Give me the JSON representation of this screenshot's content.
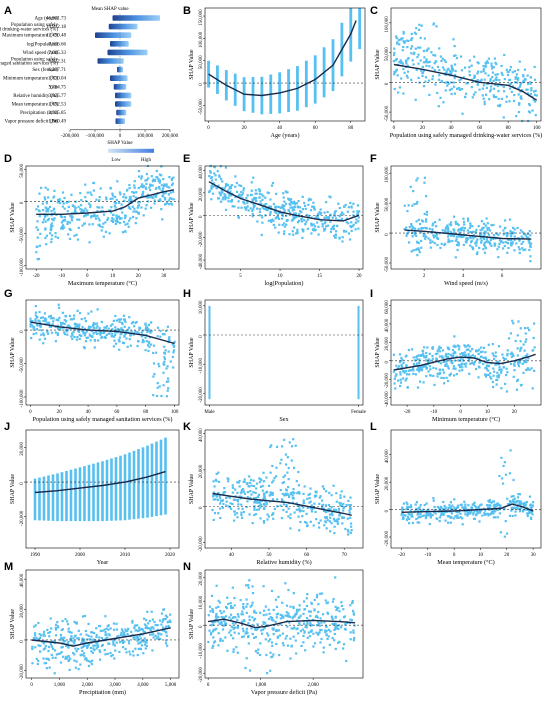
{
  "chart_data": [
    {
      "id": "A",
      "type": "bar",
      "title": "Mean SHAP value",
      "xlabel": "SHAP Value",
      "xticks": [
        "-200,000",
        "-100,000",
        "0",
        "100,000",
        "200,000"
      ],
      "xlim": [
        -200000,
        200000
      ],
      "legend": {
        "low": "Low",
        "high": "High"
      },
      "features": [
        {
          "label": "Age (years)",
          "value": "46,931.73",
          "range": [
            -30000,
            160000
          ]
        },
        {
          "label": "Population using safely managed drinking-water services (%)",
          "value": "14,812.18",
          "range": [
            -45000,
            70000
          ]
        },
        {
          "label": "Maximum temperature (°C)",
          "value": "13,490.48",
          "range": [
            -100000,
            45000
          ]
        },
        {
          "label": "log(Population)",
          "value": "7,836.66",
          "range": [
            -40000,
            35000
          ]
        },
        {
          "label": "Wind speed (m/s)",
          "value": "7,005.33",
          "range": [
            -50000,
            110000
          ]
        },
        {
          "label": "Population using safely managed sanitation services (%)",
          "value": "6,822.31",
          "range": [
            -90000,
            15000
          ]
        },
        {
          "label": "Sex (female)",
          "value": "6,237.71",
          "range": [
            -12000,
            12000
          ]
        },
        {
          "label": "Minimum temperature (°C)",
          "value": "3,830.04",
          "range": [
            -40000,
            30000
          ]
        },
        {
          "label": "Year",
          "value": "3,794.75",
          "range": [
            -25000,
            25000
          ]
        },
        {
          "label": "Relative humidity (%)",
          "value": "3,825.77",
          "range": [
            -20000,
            45000
          ]
        },
        {
          "label": "Mean temperature (°C)",
          "value": "3,692.53",
          "range": [
            -20000,
            45000
          ]
        },
        {
          "label": "Precipitation (mm)",
          "value": "2,935.85",
          "range": [
            -15000,
            25000
          ]
        },
        {
          "label": "Vapor pressure deficit (Pa)",
          "value": "1,960.49",
          "range": [
            -18000,
            20000
          ]
        }
      ]
    },
    {
      "id": "B",
      "type": "scatter",
      "xlabel": "Age (years)",
      "ylabel": "SHAP Value",
      "xlim": [
        -2,
        88
      ],
      "ylim": [
        -85000,
        168000
      ],
      "xticks": [
        0,
        20,
        40,
        60,
        80
      ],
      "yticks": [
        -50000,
        0,
        50000,
        100000,
        150000
      ],
      "ytick_labels": [
        "-50,000",
        "0",
        "50,000",
        "100,000",
        "150,000"
      ],
      "fit": [
        [
          0,
          20000
        ],
        [
          10,
          -5000
        ],
        [
          20,
          -25000
        ],
        [
          30,
          -28000
        ],
        [
          40,
          -22000
        ],
        [
          50,
          -12000
        ],
        [
          60,
          8000
        ],
        [
          70,
          40000
        ],
        [
          80,
          110000
        ],
        [
          83,
          140000
        ]
      ]
    },
    {
      "id": "C",
      "type": "scatter",
      "xlabel": "Population using safely managed drinking-water services (%)",
      "ylabel": "SHAP Value",
      "xlim": [
        -2,
        103
      ],
      "ylim": [
        -65000,
        125000
      ],
      "xticks": [
        0,
        20,
        40,
        60,
        80,
        100
      ],
      "yticks": [
        -50000,
        0,
        50000,
        100000
      ],
      "ytick_labels": [
        "-50,000",
        "0",
        "50,000",
        "100,000"
      ],
      "fit": [
        [
          0,
          30000
        ],
        [
          20,
          22000
        ],
        [
          40,
          12000
        ],
        [
          60,
          0
        ],
        [
          80,
          -5000
        ],
        [
          90,
          -15000
        ],
        [
          100,
          -30000
        ]
      ]
    },
    {
      "id": "D",
      "type": "scatter",
      "xlabel": "Maximum temperature (°C)",
      "ylabel": "SHAP Value",
      "xlim": [
        -24,
        36
      ],
      "ylim": [
        -105000,
        55000
      ],
      "xticks": [
        -20,
        -10,
        0,
        10,
        20,
        30
      ],
      "yticks": [
        -100000,
        -50000,
        0,
        50000
      ],
      "ytick_labels": [
        "-100,000",
        "-50,000",
        "0",
        "50,000"
      ],
      "fit": [
        [
          -20,
          -20000
        ],
        [
          -10,
          -20000
        ],
        [
          0,
          -18000
        ],
        [
          10,
          -15000
        ],
        [
          15,
          -8000
        ],
        [
          20,
          5000
        ],
        [
          25,
          10000
        ],
        [
          30,
          15000
        ],
        [
          34,
          18000
        ]
      ]
    },
    {
      "id": "E",
      "type": "scatter",
      "xlabel": "log(Population)",
      "ylabel": "SHAP Value",
      "xlim": [
        0.5,
        20.5
      ],
      "ylim": [
        -48000,
        44000
      ],
      "xticks": [
        5,
        10,
        15,
        20
      ],
      "yticks": [
        -40000,
        -20000,
        0,
        20000,
        40000
      ],
      "ytick_labels": [
        "-40,000",
        "-20,000",
        "0",
        "20,000",
        "40,000"
      ],
      "fit": [
        [
          1,
          30000
        ],
        [
          3,
          22000
        ],
        [
          5,
          15000
        ],
        [
          8,
          8000
        ],
        [
          10,
          3000
        ],
        [
          12,
          0
        ],
        [
          15,
          -4000
        ],
        [
          18,
          -5000
        ],
        [
          20,
          0
        ]
      ]
    },
    {
      "id": "F",
      "type": "scatter",
      "xlabel": "Wind speed (m/s)",
      "ylabel": "SHAP Value",
      "xlim": [
        0.3,
        8
      ],
      "ylim": [
        -60000,
        112000
      ],
      "xticks": [
        2,
        4,
        6
      ],
      "yticks": [
        -50000,
        0,
        50000,
        100000
      ],
      "ytick_labels": [
        "-50,000",
        "0",
        "50,000",
        "100,000"
      ],
      "fit": [
        [
          1,
          5000
        ],
        [
          2,
          3000
        ],
        [
          3,
          0
        ],
        [
          4,
          -3000
        ],
        [
          5,
          -6000
        ],
        [
          6,
          -9000
        ],
        [
          7.5,
          -10000
        ]
      ]
    },
    {
      "id": "G",
      "type": "scatter",
      "xlabel": "Population using safely managed sanitation services (%)",
      "ylabel": "SHAP Value",
      "xlim": [
        -3,
        103
      ],
      "ylim": [
        -112000,
        45000
      ],
      "xticks": [
        0,
        20,
        40,
        60,
        80,
        100
      ],
      "yticks": [
        -100000,
        -50000,
        0
      ],
      "ytick_labels": [
        "-100,000",
        "-50,000",
        "0"
      ],
      "fit": [
        [
          0,
          12000
        ],
        [
          20,
          5000
        ],
        [
          40,
          0
        ],
        [
          60,
          -2000
        ],
        [
          80,
          -8000
        ],
        [
          100,
          -20000
        ]
      ]
    },
    {
      "id": "H",
      "type": "scatter",
      "xlabel": "Sex",
      "ylabel": "SHAP Value",
      "xlim": [
        -0.03,
        1.03
      ],
      "ylim": [
        -24000,
        12000
      ],
      "xticks": [
        0,
        1
      ],
      "xtick_labels": [
        "Male",
        "Female"
      ],
      "yticks": [
        -20000,
        -10000,
        0,
        10000
      ],
      "ytick_labels": [
        "-20,000",
        "-10,000",
        "0",
        "10,000"
      ],
      "fit": []
    },
    {
      "id": "I",
      "type": "scatter",
      "xlabel": "Minimum temperature (°C)",
      "ylabel": "SHAP Value",
      "xlim": [
        -26,
        30
      ],
      "ylim": [
        -48000,
        66000
      ],
      "xticks": [
        -20,
        -10,
        0,
        10,
        20
      ],
      "yticks": [
        -40000,
        -20000,
        0,
        20000,
        40000,
        60000
      ],
      "ytick_labels": [
        "-40,000",
        "-20,000",
        "0",
        "20,000",
        "40,000",
        "60,000"
      ],
      "fit": [
        [
          -25,
          -10000
        ],
        [
          -15,
          -5000
        ],
        [
          -5,
          2000
        ],
        [
          0,
          4000
        ],
        [
          5,
          3000
        ],
        [
          10,
          -2000
        ],
        [
          15,
          -3000
        ],
        [
          20,
          0
        ],
        [
          25,
          4000
        ],
        [
          28,
          7000
        ]
      ]
    },
    {
      "id": "J",
      "type": "scatter",
      "xlabel": "Year",
      "ylabel": "SHAP Value",
      "xlim": [
        1988,
        2022
      ],
      "ylim": [
        -38000,
        30000
      ],
      "xticks": [
        1990,
        2000,
        2010,
        2020
      ],
      "yticks": [
        -20000,
        0,
        20000
      ],
      "ytick_labels": [
        "-20,000",
        "0",
        "20,000"
      ],
      "fit": [
        [
          1990,
          -6000
        ],
        [
          1995,
          -5000
        ],
        [
          2000,
          -3500
        ],
        [
          2005,
          -2000
        ],
        [
          2010,
          0
        ],
        [
          2015,
          3000
        ],
        [
          2019,
          6000
        ]
      ]
    },
    {
      "id": "K",
      "type": "scatter",
      "xlabel": "Relative humidity (%)",
      "ylabel": "SHAP Value",
      "xlim": [
        33,
        75
      ],
      "ylim": [
        -23000,
        42000
      ],
      "xticks": [
        40,
        50,
        60,
        70
      ],
      "yticks": [
        -20000,
        0,
        20000,
        40000
      ],
      "ytick_labels": [
        "-20,000",
        "0",
        "20,000",
        "40,000"
      ],
      "fit": [
        [
          35,
          7000
        ],
        [
          40,
          5500
        ],
        [
          45,
          4000
        ],
        [
          50,
          3000
        ],
        [
          55,
          2000
        ],
        [
          60,
          0
        ],
        [
          65,
          -2000
        ],
        [
          70,
          -4000
        ],
        [
          72,
          -5000
        ]
      ]
    },
    {
      "id": "L",
      "type": "scatter",
      "xlabel": "Mean temperature (°C)",
      "ylabel": "SHAP Value",
      "xlim": [
        -24,
        33
      ],
      "ylim": [
        -28000,
        58000
      ],
      "xticks": [
        -20,
        -10,
        0,
        10,
        20,
        30
      ],
      "yticks": [
        -20000,
        0,
        20000,
        40000
      ],
      "ytick_labels": [
        "-20,000",
        "0",
        "20,000",
        "40,000"
      ],
      "fit": [
        [
          -20,
          -2000
        ],
        [
          -10,
          -1500
        ],
        [
          0,
          -1000
        ],
        [
          10,
          0
        ],
        [
          18,
          1000
        ],
        [
          22,
          4000
        ],
        [
          26,
          2000
        ],
        [
          30,
          -1000
        ]
      ]
    },
    {
      "id": "M",
      "type": "scatter",
      "xlabel": "Precipitation (mm)",
      "ylabel": "SHAP Value",
      "xlim": [
        -200,
        5300
      ],
      "ylim": [
        -25000,
        46000
      ],
      "xticks": [
        0,
        2000,
        4000
      ],
      "xticks_minor": [
        1000,
        3000,
        5000
      ],
      "xtick_labels": [
        "0",
        "1,000",
        "2,000",
        "3,000",
        "4,000",
        "5,000"
      ],
      "yticks": [
        -20000,
        0,
        20000,
        40000
      ],
      "ytick_labels": [
        "-20,000",
        "0",
        "20,000",
        "40,000"
      ],
      "fit": [
        [
          0,
          0
        ],
        [
          500,
          -1000
        ],
        [
          1000,
          -2000
        ],
        [
          1500,
          -4000
        ],
        [
          2000,
          -2000
        ],
        [
          3000,
          1000
        ],
        [
          4000,
          4000
        ],
        [
          5000,
          8000
        ]
      ]
    },
    {
      "id": "N",
      "type": "scatter",
      "xlabel": "Vapor pressure deficit (Pa)",
      "ylabel": "SHAP Value",
      "xlim": [
        -60,
        2950
      ],
      "ylim": [
        -22000,
        23000
      ],
      "xticks": [
        0,
        1000,
        2000
      ],
      "xtick_labels": [
        "0",
        "1,000",
        "2,000"
      ],
      "yticks": [
        -20000,
        -10000,
        0,
        10000,
        20000
      ],
      "ytick_labels": [
        "-20,000",
        "-10,000",
        "0",
        "10,000",
        "20,000"
      ],
      "fit": [
        [
          0,
          1500
        ],
        [
          300,
          2500
        ],
        [
          600,
          1000
        ],
        [
          900,
          -1000
        ],
        [
          1100,
          -500
        ],
        [
          1500,
          1500
        ],
        [
          2000,
          2000
        ],
        [
          2500,
          1500
        ],
        [
          2800,
          1000
        ]
      ]
    }
  ],
  "colors": {
    "point": "#56C0F0",
    "fit": "#1B2A4A",
    "bar_dark": "#1E4290",
    "bar_light": "#D3E4F4"
  }
}
